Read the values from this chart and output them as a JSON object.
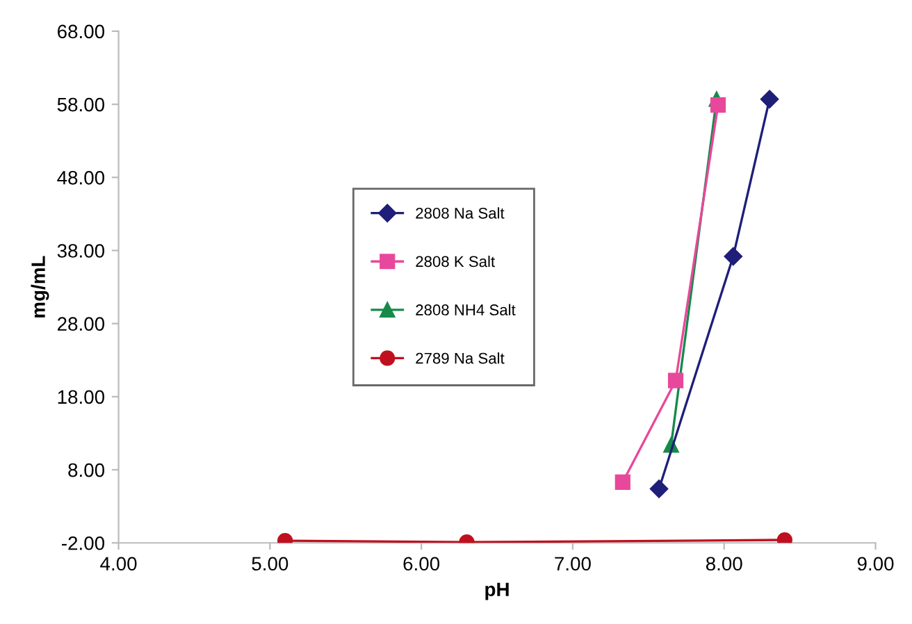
{
  "chart_data": {
    "type": "line",
    "xlabel": "pH",
    "ylabel": "mg/mL",
    "xlim": [
      4,
      9
    ],
    "xticks": [
      {
        "value": 4,
        "label": "4.00"
      },
      {
        "value": 5,
        "label": "5.00"
      },
      {
        "value": 6,
        "label": "6.00"
      },
      {
        "value": 7,
        "label": "7.00"
      },
      {
        "value": 8,
        "label": "8.00"
      },
      {
        "value": 9,
        "label": "9.00"
      }
    ],
    "ylim": [
      -2,
      68
    ],
    "yticks": [
      {
        "value": -2,
        "label": "-2.00"
      },
      {
        "value": 8,
        "label": "8.00"
      },
      {
        "value": 18,
        "label": "18.00"
      },
      {
        "value": 28,
        "label": "28.00"
      },
      {
        "value": 38,
        "label": "38.00"
      },
      {
        "value": 48,
        "label": "48.00"
      },
      {
        "value": 58,
        "label": "58.00"
      },
      {
        "value": 68,
        "label": "68.00"
      }
    ],
    "grid": false,
    "legend": "center left",
    "series": [
      {
        "name": "2808 Na Salt",
        "color": "#1f1f7a",
        "marker": "diamond",
        "x": [
          7.57,
          8.06,
          8.3
        ],
        "values": [
          5.4,
          37.2,
          58.7
        ]
      },
      {
        "name": "2808 K Salt",
        "color": "#e8489b",
        "marker": "square",
        "x": [
          7.33,
          7.68,
          7.96
        ],
        "values": [
          6.3,
          20.2,
          57.9
        ]
      },
      {
        "name": "2808 NH4 Salt",
        "color": "#178a4a",
        "marker": "triangle",
        "x": [
          7.65,
          7.95
        ],
        "values": [
          11.4,
          58.7
        ]
      },
      {
        "name": "2789 Na Salt",
        "color": "#c0101f",
        "marker": "circle",
        "x": [
          5.1,
          6.3,
          8.4
        ],
        "values": [
          -1.7,
          -1.9,
          -1.6
        ]
      }
    ]
  }
}
